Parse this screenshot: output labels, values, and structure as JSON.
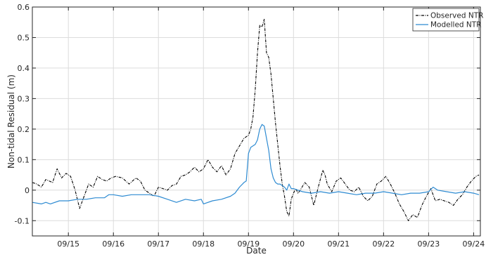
{
  "chart_data": {
    "type": "line",
    "xlabel": "Date",
    "ylabel": "Non-tidal Residual (m)",
    "x_unit": "day of September (decimal)",
    "xlim": [
      14.2,
      24.15
    ],
    "ylim": [
      -0.15,
      0.6
    ],
    "x_ticks": [
      15,
      16,
      17,
      18,
      19,
      20,
      21,
      22,
      23,
      24
    ],
    "x_tick_labels": [
      "09/15",
      "09/16",
      "09/17",
      "09/18",
      "09/19",
      "09/20",
      "09/21",
      "09/22",
      "09/23",
      "09/24"
    ],
    "y_ticks": [
      -0.1,
      0,
      0.1,
      0.2,
      0.3,
      0.4,
      0.5,
      0.6
    ],
    "y_tick_labels": [
      "-0.1",
      "0",
      "0.1",
      "0.2",
      "0.3",
      "0.4",
      "0.5",
      "0.6"
    ],
    "grid": true,
    "legend": "top-right",
    "series": [
      {
        "name": "Observed NTR",
        "color": "#000000",
        "style": "dash-dot",
        "x": [
          14.2,
          14.3,
          14.4,
          14.5,
          14.65,
          14.75,
          14.85,
          14.95,
          15.05,
          15.15,
          15.25,
          15.35,
          15.45,
          15.55,
          15.65,
          15.75,
          15.85,
          15.95,
          16.05,
          16.2,
          16.35,
          16.5,
          16.6,
          16.7,
          16.8,
          16.9,
          17.0,
          17.1,
          17.2,
          17.3,
          17.4,
          17.5,
          17.6,
          17.7,
          17.8,
          17.9,
          18.0,
          18.1,
          18.2,
          18.3,
          18.4,
          18.5,
          18.6,
          18.7,
          18.8,
          18.9,
          19.0,
          19.05,
          19.1,
          19.15,
          19.2,
          19.25,
          19.3,
          19.35,
          19.4,
          19.45,
          19.5,
          19.55,
          19.6,
          19.65,
          19.7,
          19.75,
          19.8,
          19.85,
          19.9,
          19.95,
          20.0,
          20.05,
          20.1,
          20.15,
          20.25,
          20.35,
          20.45,
          20.55,
          20.65,
          20.7,
          20.75,
          20.85,
          20.95,
          21.05,
          21.15,
          21.25,
          21.35,
          21.45,
          21.55,
          21.65,
          21.75,
          21.85,
          21.95,
          22.05,
          22.15,
          22.25,
          22.35,
          22.45,
          22.55,
          22.65,
          22.75,
          22.85,
          22.95,
          23.05,
          23.15,
          23.25,
          23.35,
          23.45,
          23.55,
          23.65,
          23.75,
          23.85,
          23.95,
          24.05,
          24.12
        ],
        "values": [
          0.025,
          0.02,
          0.01,
          0.035,
          0.025,
          0.07,
          0.04,
          0.055,
          0.045,
          0.0,
          -0.06,
          -0.02,
          0.02,
          0.01,
          0.045,
          0.035,
          0.03,
          0.04,
          0.045,
          0.04,
          0.02,
          0.04,
          0.03,
          0.0,
          -0.01,
          -0.02,
          0.01,
          0.005,
          0.0,
          0.015,
          0.02,
          0.045,
          0.05,
          0.06,
          0.075,
          0.06,
          0.07,
          0.1,
          0.075,
          0.06,
          0.08,
          0.05,
          0.07,
          0.12,
          0.145,
          0.17,
          0.18,
          0.2,
          0.24,
          0.33,
          0.45,
          0.54,
          0.535,
          0.56,
          0.45,
          0.435,
          0.38,
          0.3,
          0.22,
          0.15,
          0.08,
          0.02,
          -0.02,
          -0.07,
          -0.085,
          -0.03,
          -0.01,
          0.005,
          -0.01,
          0.0,
          0.025,
          0.01,
          -0.05,
          0.01,
          0.065,
          0.05,
          0.02,
          -0.005,
          0.03,
          0.04,
          0.02,
          0.0,
          -0.005,
          0.01,
          -0.02,
          -0.035,
          -0.02,
          0.02,
          0.03,
          0.045,
          0.02,
          -0.01,
          -0.045,
          -0.07,
          -0.1,
          -0.08,
          -0.09,
          -0.05,
          -0.02,
          0.005,
          -0.035,
          -0.03,
          -0.035,
          -0.04,
          -0.05,
          -0.03,
          -0.015,
          0.01,
          0.03,
          0.045,
          0.05
        ]
      },
      {
        "name": "Modelled NTR",
        "color": "#2e8bd2",
        "style": "solid",
        "x": [
          14.2,
          14.4,
          14.5,
          14.6,
          14.8,
          15.0,
          15.2,
          15.4,
          15.6,
          15.8,
          15.9,
          16.0,
          16.2,
          16.4,
          16.6,
          16.8,
          17.0,
          17.2,
          17.4,
          17.6,
          17.8,
          17.95,
          18.0,
          18.2,
          18.4,
          18.6,
          18.7,
          18.8,
          18.9,
          18.95,
          19.0,
          19.05,
          19.1,
          19.15,
          19.2,
          19.25,
          19.3,
          19.35,
          19.4,
          19.45,
          19.5,
          19.55,
          19.6,
          19.65,
          19.7,
          19.75,
          19.8,
          19.85,
          19.9,
          19.95,
          20.0,
          20.1,
          20.2,
          20.4,
          20.6,
          20.8,
          21.0,
          21.2,
          21.4,
          21.6,
          21.8,
          22.0,
          22.2,
          22.4,
          22.6,
          22.8,
          23.0,
          23.1,
          23.2,
          23.4,
          23.6,
          23.8,
          24.0,
          24.12
        ],
        "values": [
          -0.04,
          -0.045,
          -0.04,
          -0.045,
          -0.035,
          -0.035,
          -0.03,
          -0.03,
          -0.025,
          -0.025,
          -0.015,
          -0.015,
          -0.02,
          -0.015,
          -0.015,
          -0.015,
          -0.02,
          -0.03,
          -0.04,
          -0.03,
          -0.035,
          -0.03,
          -0.045,
          -0.035,
          -0.03,
          -0.02,
          -0.01,
          0.01,
          0.025,
          0.03,
          0.12,
          0.14,
          0.145,
          0.15,
          0.165,
          0.2,
          0.215,
          0.21,
          0.17,
          0.13,
          0.07,
          0.04,
          0.025,
          0.02,
          0.02,
          0.015,
          0.01,
          0.0,
          0.02,
          0.005,
          0.005,
          0.0,
          -0.005,
          -0.01,
          -0.005,
          -0.01,
          -0.005,
          -0.01,
          -0.015,
          -0.01,
          -0.01,
          -0.005,
          -0.01,
          -0.015,
          -0.01,
          -0.01,
          -0.005,
          0.01,
          0.0,
          -0.005,
          -0.01,
          -0.005,
          -0.01,
          -0.015
        ]
      }
    ]
  }
}
